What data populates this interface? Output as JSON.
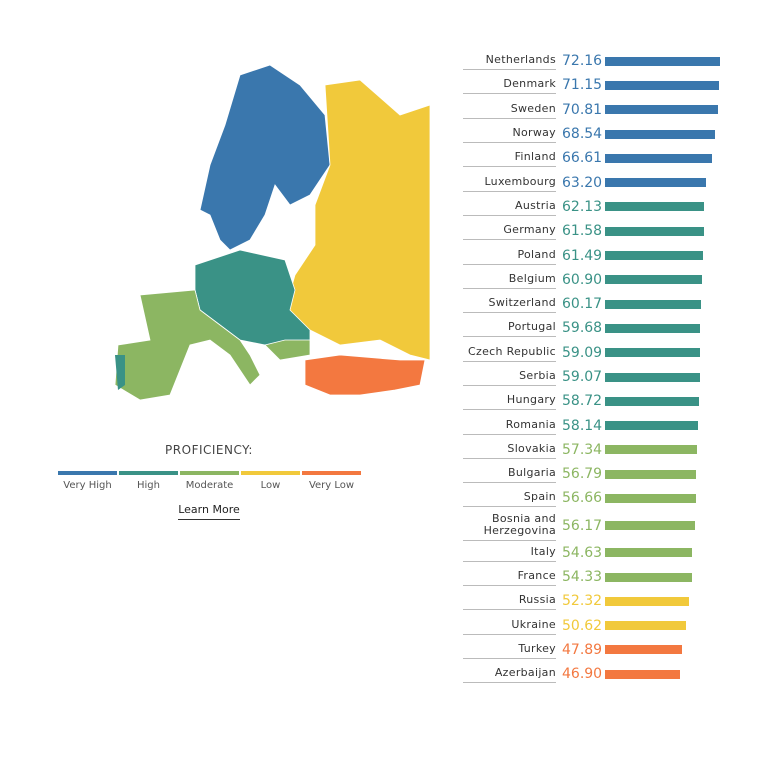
{
  "chart_data": {
    "type": "bar",
    "orientation": "horizontal",
    "categories": [
      "Netherlands",
      "Denmark",
      "Sweden",
      "Norway",
      "Finland",
      "Luxembourg",
      "Austria",
      "Germany",
      "Poland",
      "Belgium",
      "Switzerland",
      "Portugal",
      "Czech Republic",
      "Serbia",
      "Hungary",
      "Romania",
      "Slovakia",
      "Bulgaria",
      "Spain",
      "Bosnia and Herzegovina",
      "Italy",
      "France",
      "Russia",
      "Ukraine",
      "Turkey",
      "Azerbaijan"
    ],
    "values": [
      72.16,
      71.15,
      70.81,
      68.54,
      66.61,
      63.2,
      62.13,
      61.58,
      61.49,
      60.9,
      60.17,
      59.68,
      59.09,
      59.07,
      58.72,
      58.14,
      57.34,
      56.79,
      56.66,
      56.17,
      54.63,
      54.33,
      52.32,
      50.62,
      47.89,
      46.9
    ],
    "value_labels": [
      "72.16",
      "71.15",
      "70.81",
      "68.54",
      "66.61",
      "63.20",
      "62.13",
      "61.58",
      "61.49",
      "60.90",
      "60.17",
      "59.68",
      "59.09",
      "59.07",
      "58.72",
      "58.14",
      "57.34",
      "56.79",
      "56.66",
      "56.17",
      "54.63",
      "54.33",
      "52.32",
      "50.62",
      "47.89",
      "46.90"
    ],
    "colors": [
      "#3a77ad",
      "#3a77ad",
      "#3a77ad",
      "#3a77ad",
      "#3a77ad",
      "#3a77ad",
      "#3a9286",
      "#3a9286",
      "#3a9286",
      "#3a9286",
      "#3a9286",
      "#3a9286",
      "#3a9286",
      "#3a9286",
      "#3a9286",
      "#3a9286",
      "#8cb662",
      "#8cb662",
      "#8cb662",
      "#8cb662",
      "#8cb662",
      "#8cb662",
      "#f1c93b",
      "#f1c93b",
      "#f37840",
      "#f37840"
    ],
    "xlim": [
      0,
      75
    ]
  },
  "legend": {
    "title": "PROFICIENCY:",
    "items": [
      {
        "name": "Very High",
        "color": "#3a77ad"
      },
      {
        "name": "High",
        "color": "#3a9286"
      },
      {
        "name": "Moderate",
        "color": "#8cb662"
      },
      {
        "name": "Low",
        "color": "#f1c93b"
      },
      {
        "name": "Very Low",
        "color": "#f37840"
      }
    ]
  },
  "link": "Learn More"
}
